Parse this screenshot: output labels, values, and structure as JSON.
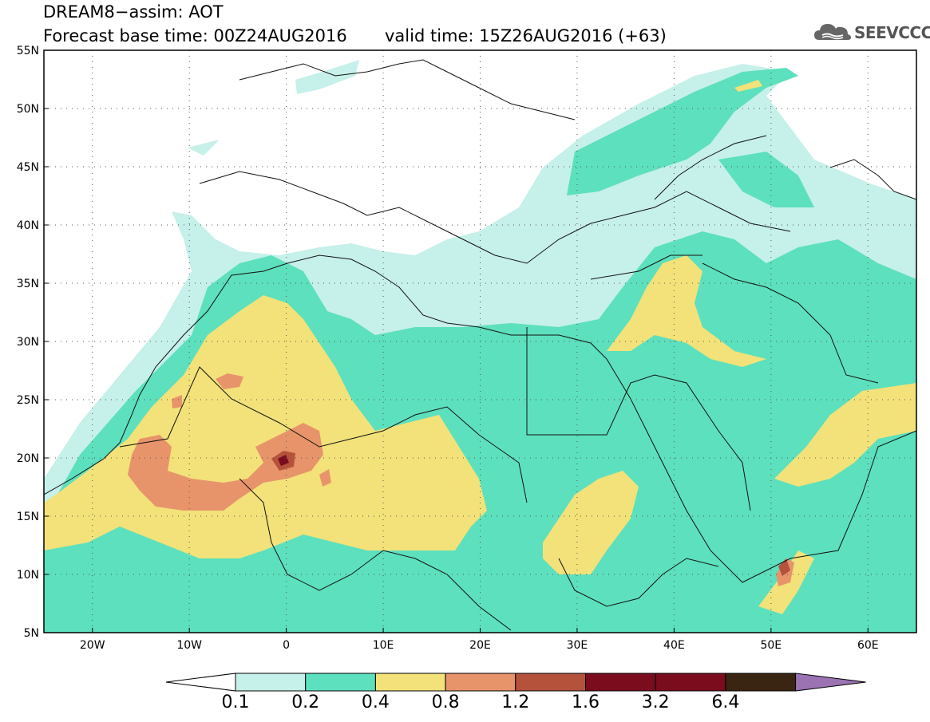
{
  "header": {
    "title": "DREAM8−assim: AOT",
    "base_time": "Forecast base time: 00Z24AUG2016",
    "valid_time": "valid time: 15Z26AUG2016 (+63)",
    "logo_text": "SEEVCCC"
  },
  "map": {
    "lon_range": [
      -25,
      65
    ],
    "lat_range": [
      5,
      55
    ],
    "lon_ticks": [
      {
        "value": -20,
        "label": "20W"
      },
      {
        "value": -10,
        "label": "10W"
      },
      {
        "value": 0,
        "label": "0"
      },
      {
        "value": 10,
        "label": "10E"
      },
      {
        "value": 20,
        "label": "20E"
      },
      {
        "value": 30,
        "label": "30E"
      },
      {
        "value": 40,
        "label": "40E"
      },
      {
        "value": 50,
        "label": "50E"
      },
      {
        "value": 60,
        "label": "60E"
      }
    ],
    "lat_ticks": [
      {
        "value": 55,
        "label": "55N"
      },
      {
        "value": 50,
        "label": "50N"
      },
      {
        "value": 45,
        "label": "45N"
      },
      {
        "value": 40,
        "label": "40N"
      },
      {
        "value": 35,
        "label": "35N"
      },
      {
        "value": 30,
        "label": "30N"
      },
      {
        "value": 25,
        "label": "25N"
      },
      {
        "value": 20,
        "label": "20N"
      },
      {
        "value": 15,
        "label": "15N"
      },
      {
        "value": 10,
        "label": "10N"
      },
      {
        "value": 5,
        "label": "5N"
      }
    ],
    "gridlines": "dotted",
    "levels": {
      "l1": {
        "min": 0.1,
        "color": "#c6f0ea"
      },
      "l2": {
        "min": 0.2,
        "color": "#5de0bd"
      },
      "l3": {
        "min": 0.4,
        "color": "#f2e279"
      },
      "l4": {
        "min": 0.8,
        "color": "#e8946b"
      },
      "l5": {
        "min": 1.2,
        "color": "#b5523b"
      },
      "l6": {
        "min": 1.6,
        "color": "#7a0c1e"
      }
    }
  },
  "colorbar": {
    "labels": [
      "0.1",
      "0.2",
      "0.4",
      "0.8",
      "1.2",
      "1.6",
      "3.2",
      "6.4"
    ],
    "colors": [
      "#ffffff",
      "#c6f0ea",
      "#5de0bd",
      "#f2e279",
      "#e8946b",
      "#b5523b",
      "#7a0c1e",
      "#7a0c1e",
      "#3a2412",
      "#9b73b3"
    ]
  }
}
